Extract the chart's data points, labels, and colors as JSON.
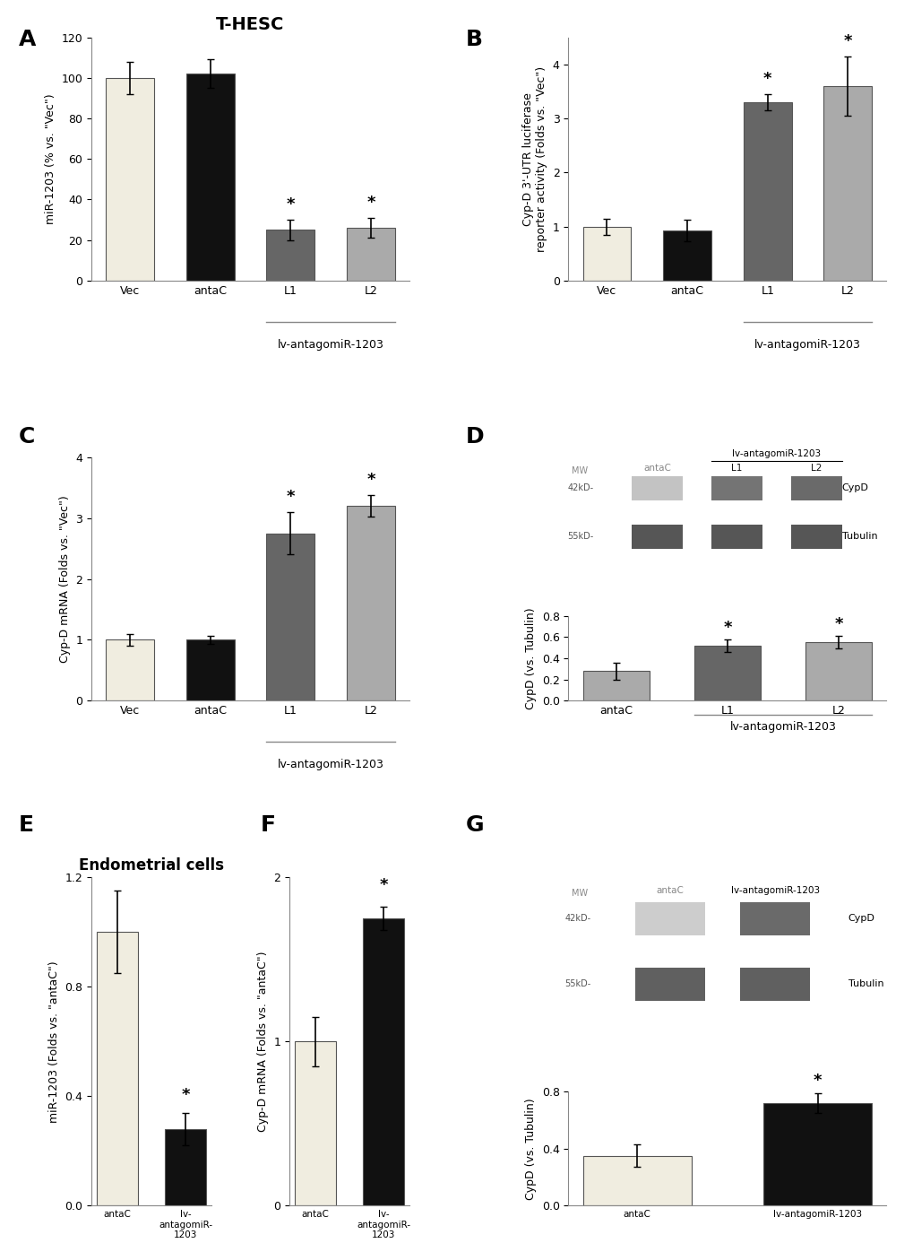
{
  "panel_A": {
    "title": "T-HESC",
    "ylabel": "miR-1203 (% vs. \"Vec\")",
    "categories": [
      "Vec",
      "antaC",
      "L1",
      "L2"
    ],
    "values": [
      100,
      102,
      25,
      26
    ],
    "errors": [
      8,
      7,
      5,
      5
    ],
    "colors": [
      "#f0ede0",
      "#111111",
      "#666666",
      "#aaaaaa"
    ],
    "ylim": [
      0,
      120
    ],
    "yticks": [
      0,
      20,
      40,
      60,
      80,
      100,
      120
    ],
    "sig": [
      false,
      false,
      true,
      true
    ],
    "xlabel_group": "lv-antagomiR-1203",
    "xlabel_group_bars": [
      2,
      3
    ]
  },
  "panel_B": {
    "ylabel": "Cyp-D 3'-UTR luciferase\nreporter activity (Folds vs. \"Vec\")",
    "categories": [
      "Vec",
      "antaC",
      "L1",
      "L2"
    ],
    "values": [
      1.0,
      0.93,
      3.3,
      3.6
    ],
    "errors": [
      0.15,
      0.2,
      0.15,
      0.55
    ],
    "colors": [
      "#f0ede0",
      "#111111",
      "#666666",
      "#aaaaaa"
    ],
    "ylim": [
      0,
      4.5
    ],
    "yticks": [
      0,
      1,
      2,
      3,
      4
    ],
    "sig": [
      false,
      false,
      true,
      true
    ],
    "xlabel_group": "lv-antagomiR-1203",
    "xlabel_group_bars": [
      2,
      3
    ]
  },
  "panel_C": {
    "ylabel": "Cyp-D mRNA (Folds vs. \"Vec\")",
    "categories": [
      "Vec",
      "antaC",
      "L1",
      "L2"
    ],
    "values": [
      1.0,
      1.0,
      2.75,
      3.2
    ],
    "errors": [
      0.1,
      0.07,
      0.35,
      0.18
    ],
    "colors": [
      "#f0ede0",
      "#111111",
      "#666666",
      "#aaaaaa"
    ],
    "ylim": [
      0,
      4
    ],
    "yticks": [
      0,
      1,
      2,
      3,
      4
    ],
    "sig": [
      false,
      false,
      true,
      true
    ],
    "xlabel_group": "lv-antagomiR-1203",
    "xlabel_group_bars": [
      2,
      3
    ]
  },
  "panel_D_bar": {
    "ylabel": "CypD (vs. Tubulin)",
    "categories": [
      "antaC",
      "L1",
      "L2"
    ],
    "values": [
      0.28,
      0.52,
      0.55
    ],
    "errors": [
      0.08,
      0.06,
      0.06
    ],
    "colors": [
      "#aaaaaa",
      "#666666",
      "#aaaaaa"
    ],
    "ylim": [
      0,
      0.8
    ],
    "yticks": [
      0,
      0.2,
      0.4,
      0.6,
      0.8
    ],
    "sig": [
      false,
      true,
      true
    ],
    "xlabel_group": "lv-antagomiR-1203",
    "xlabel_group_bars": [
      1,
      2
    ]
  },
  "panel_E": {
    "title": "Endometrial cells",
    "ylabel": "miR-1203 (Folds vs. \"antaC\")",
    "categories": [
      "antaC",
      "lv-antagomiR-1203"
    ],
    "values": [
      1.0,
      0.28
    ],
    "errors": [
      0.15,
      0.06
    ],
    "colors": [
      "#f0ede0",
      "#111111"
    ],
    "ylim": [
      0,
      1.2
    ],
    "yticks": [
      0,
      0.4,
      0.8,
      1.2
    ],
    "sig": [
      false,
      true
    ]
  },
  "panel_F": {
    "ylabel": "Cyp-D mRNA (Folds vs. \"antaC\")",
    "categories": [
      "antaC",
      "lv-antagomiR-1203"
    ],
    "values": [
      1.0,
      1.75
    ],
    "errors": [
      0.15,
      0.07
    ],
    "colors": [
      "#f0ede0",
      "#111111"
    ],
    "ylim": [
      0,
      2
    ],
    "yticks": [
      0,
      1,
      2
    ],
    "sig": [
      false,
      true
    ]
  },
  "panel_G_bar": {
    "ylabel": "CypD (vs. Tubulin)",
    "categories": [
      "antaC",
      "lv-antagomiR-1203"
    ],
    "values": [
      0.35,
      0.72
    ],
    "errors": [
      0.08,
      0.07
    ],
    "colors": [
      "#f0ede0",
      "#111111"
    ],
    "ylim": [
      0,
      0.8
    ],
    "yticks": [
      0,
      0.4,
      0.8
    ],
    "sig": [
      false,
      true
    ]
  },
  "western_D": {
    "label_top": "lv-antagomiR-1203",
    "col_labels": [
      "antaC",
      "L1",
      "L2"
    ],
    "col_label_colors": [
      "#888888",
      "#111111",
      "#111111"
    ],
    "bands": [
      {
        "name": "CypD",
        "mw": "42kD-",
        "intensities": [
          0.3,
          0.7,
          0.75
        ]
      },
      {
        "name": "Tubulin",
        "mw": "55kD-",
        "intensities": [
          0.85,
          0.85,
          0.85
        ]
      }
    ]
  },
  "western_G": {
    "label_top_left": "antaC",
    "label_top_right": "lv-antagomiR-1203",
    "bands": [
      {
        "name": "CypD",
        "mw": "42kD-",
        "intensities": [
          0.25,
          0.75
        ]
      },
      {
        "name": "Tubulin",
        "mw": "55kD-",
        "intensities": [
          0.8,
          0.8
        ]
      }
    ]
  },
  "panel_labels_fontsize": 18,
  "axis_label_fontsize": 9,
  "tick_fontsize": 9,
  "bar_width": 0.6,
  "background_color": "#ffffff"
}
